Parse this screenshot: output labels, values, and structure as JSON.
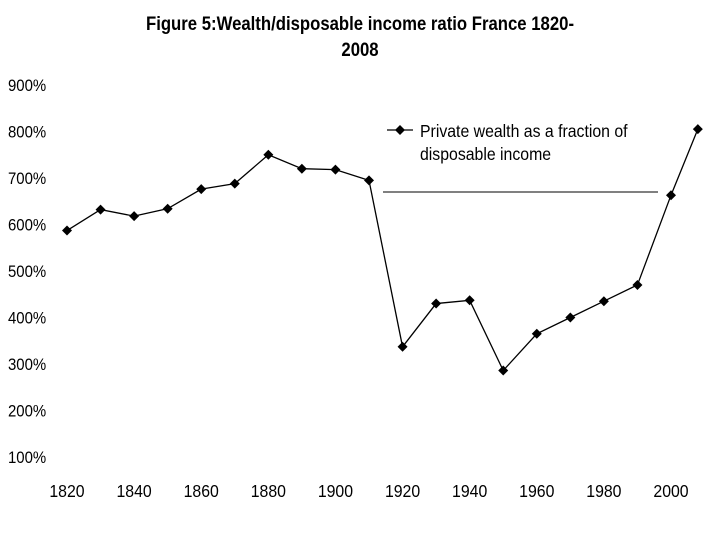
{
  "chart_data": {
    "type": "line",
    "title_lines": [
      "Figure 5:Wealth/disposable income ratio France 1820-",
      "2008"
    ],
    "xlabel": "",
    "ylabel": "",
    "x_ticks": [
      "1820",
      "1840",
      "1860",
      "1880",
      "1900",
      "1920",
      "1940",
      "1960",
      "1980",
      "2000"
    ],
    "y_ticks": [
      "100%",
      "200%",
      "300%",
      "400%",
      "500%",
      "600%",
      "700%",
      "800%",
      "900%"
    ],
    "xlim": [
      1820,
      2000
    ],
    "ylim": [
      100,
      900
    ],
    "grid": false,
    "legend_position": "top-right",
    "series": [
      {
        "name": "Private wealth as a fraction of disposable income",
        "legend_lines": [
          "Private wealth as a fraction of",
          "disposable income"
        ],
        "color": "#000000",
        "marker": "diamond",
        "x": [
          1820,
          1830,
          1840,
          1850,
          1860,
          1870,
          1880,
          1890,
          1900,
          1910,
          1920,
          1930,
          1940,
          1950,
          1960,
          1970,
          1980,
          1990,
          2000,
          2008
        ],
        "values": [
          587,
          632,
          618,
          634,
          676,
          688,
          750,
          720,
          718,
          695,
          337,
          430,
          437,
          286,
          365,
          400,
          435,
          470,
          663,
          805
        ]
      }
    ]
  }
}
